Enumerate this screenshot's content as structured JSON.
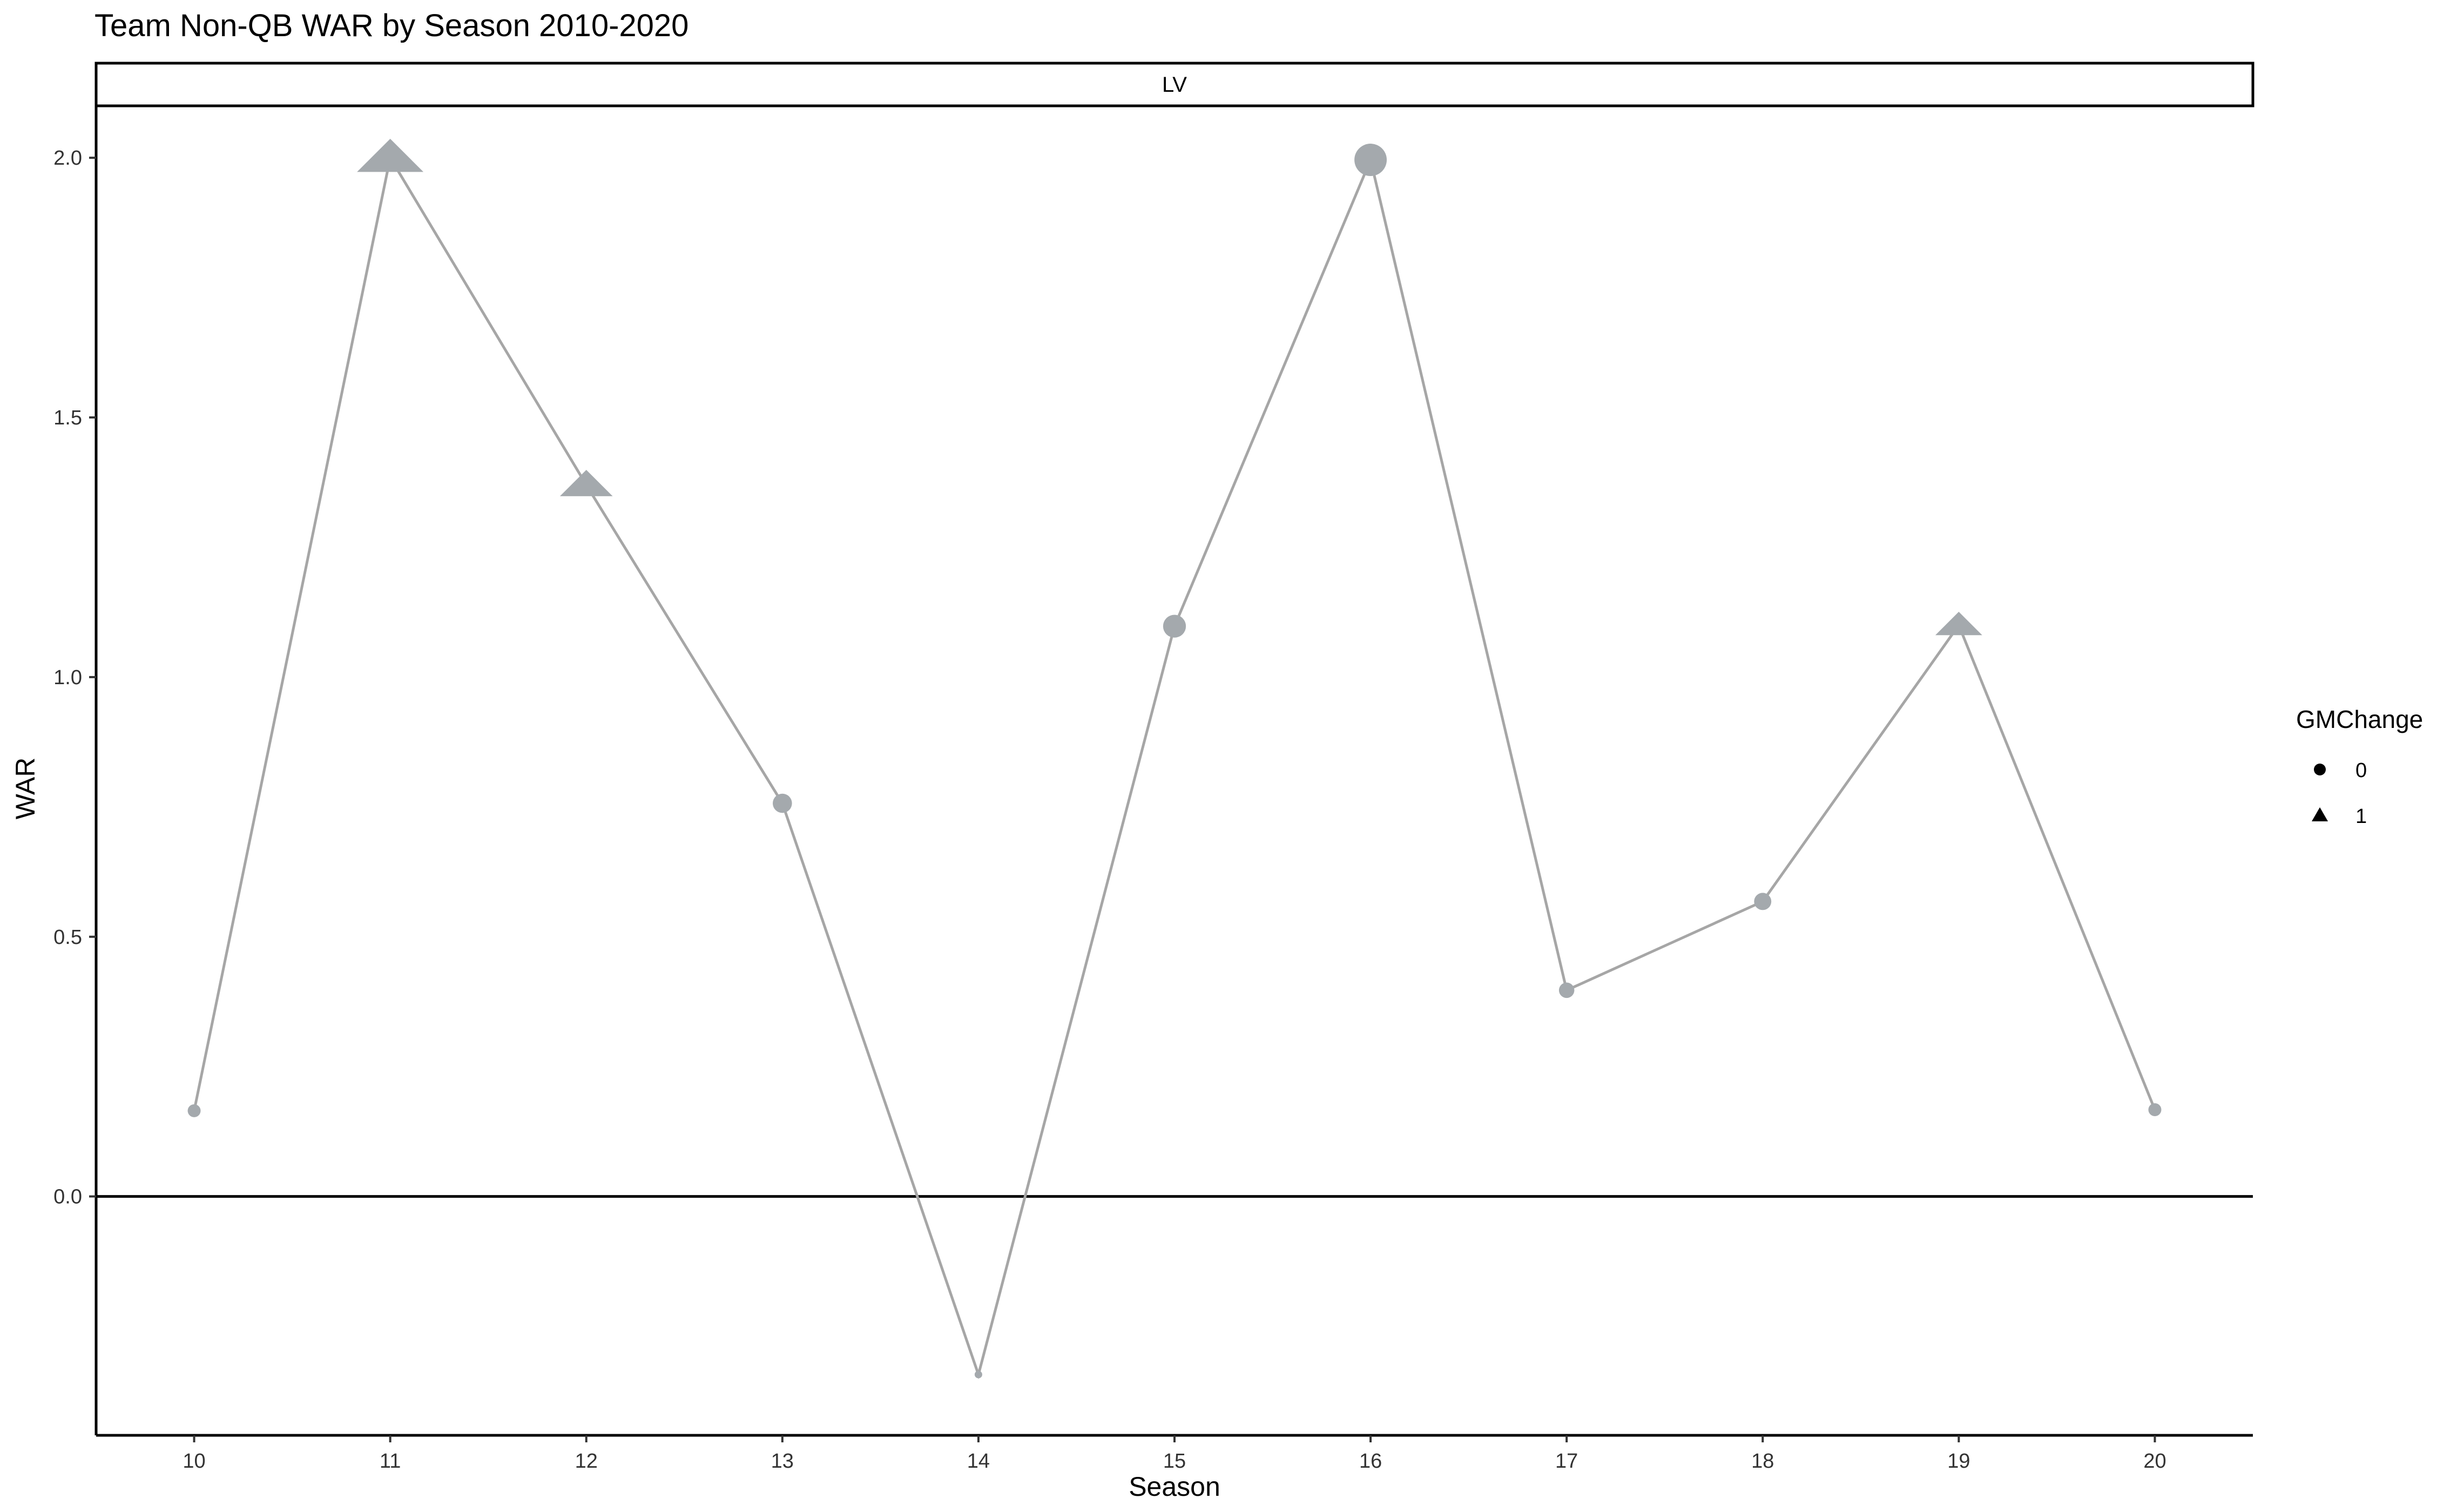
{
  "chart_data": {
    "type": "line",
    "title": "Team Non-QB WAR by Season 2010-2020",
    "facet_label": "LV",
    "xlabel": "Season",
    "ylabel": "WAR",
    "x": [
      10,
      11,
      12,
      13,
      14,
      15,
      16,
      17,
      18,
      19,
      20
    ],
    "x_tick_labels": [
      "10",
      "11",
      "12",
      "13",
      "14",
      "15",
      "16",
      "17",
      "18",
      "19",
      "20"
    ],
    "y_tick_labels": [
      "0.0",
      "0.5",
      "1.0",
      "1.5",
      "2.0"
    ],
    "xlim": [
      9.5,
      20.5
    ],
    "ylim": [
      -0.46,
      2.1
    ],
    "series": [
      {
        "values": [
          0.165,
          2.0,
          1.37,
          0.757,
          -0.343,
          1.098,
          1.996,
          0.397,
          0.568,
          1.1,
          0.167
        ],
        "gm_change": [
          0,
          1,
          1,
          0,
          0,
          0,
          0,
          0,
          0,
          1,
          0
        ]
      }
    ],
    "reference_line": 0,
    "legend": {
      "title": "GMChange",
      "placement": "right",
      "entries": [
        {
          "label": "0",
          "shape": "circle"
        },
        {
          "label": "1",
          "shape": "triangle"
        }
      ]
    },
    "colors": {
      "line": "#a6a6a6",
      "points": "#a4a9ad",
      "axis": "#000000"
    },
    "grid": false
  }
}
